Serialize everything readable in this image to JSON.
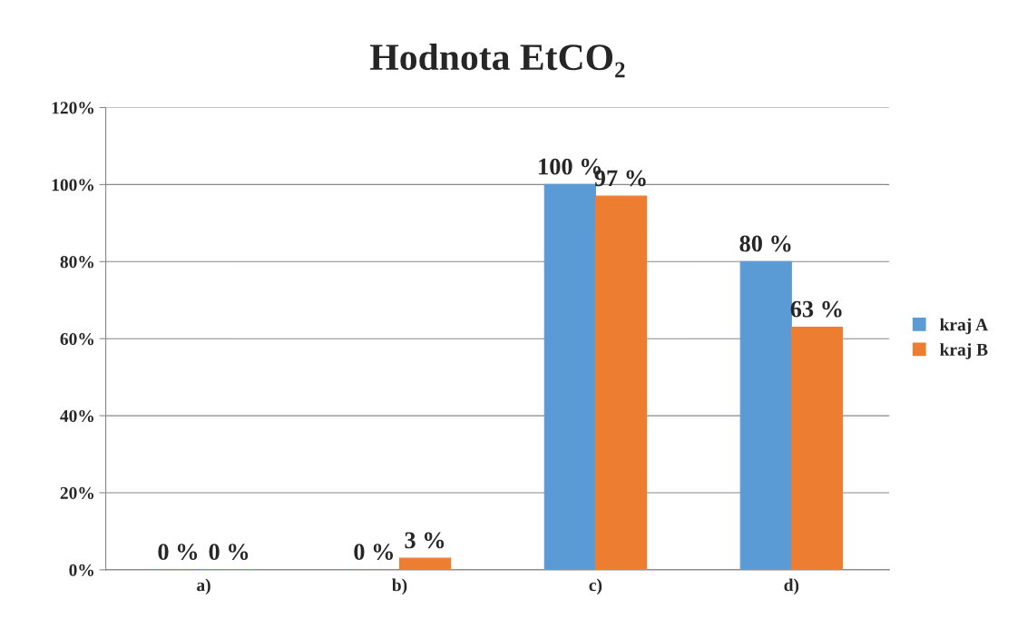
{
  "chart_data": {
    "type": "bar",
    "title": "Hodnota EtCO₂",
    "categories": [
      "a)",
      "b)",
      "c)",
      "d)"
    ],
    "series": [
      {
        "name": "kraj A",
        "color": "#5b9bd5",
        "values": [
          0,
          0,
          100,
          80
        ],
        "value_labels": [
          "0 %",
          "0 %",
          "100 %",
          "80 %"
        ]
      },
      {
        "name": "kraj B",
        "color": "#ed7d31",
        "values": [
          0,
          3,
          97,
          63
        ],
        "value_labels": [
          "0 %",
          "3 %",
          "97 %",
          "63 %"
        ]
      }
    ],
    "ylim": [
      0,
      120
    ],
    "yticks": [
      {
        "value": 0,
        "label": "0%"
      },
      {
        "value": 20,
        "label": "20%"
      },
      {
        "value": 40,
        "label": "40%"
      },
      {
        "value": 60,
        "label": "60%"
      },
      {
        "value": 80,
        "label": "80%"
      },
      {
        "value": 100,
        "label": "100%"
      },
      {
        "value": 120,
        "label": "120%"
      }
    ],
    "grid": "y",
    "legend": "right"
  }
}
